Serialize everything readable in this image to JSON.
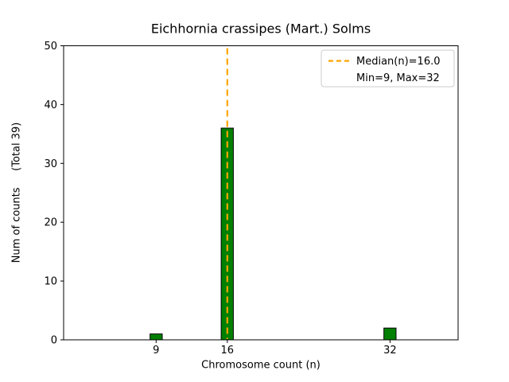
{
  "figure": {
    "title": "Eichhornia crassipes (Mart.) Solms",
    "xlabel": "Chromosome count (n)",
    "ylabel": "Num of counts     (Total 39)"
  },
  "chart_data": {
    "type": "bar",
    "title": "Eichhornia crassipes (Mart.) Solms",
    "xlabel": "Chromosome count (n)",
    "ylabel": "Num of counts",
    "ylabel_annotation": "(Total 39)",
    "x": [
      9,
      16,
      32
    ],
    "values": [
      1,
      36,
      2
    ],
    "total_counts": 39,
    "median": 16.0,
    "min": 9,
    "max": 32,
    "xticks": [
      9,
      16,
      32
    ],
    "yticks": [
      0,
      10,
      20,
      30,
      40,
      50
    ],
    "xlim": [
      -0.1,
      38.7
    ],
    "ylim": [
      0,
      50
    ],
    "bar_width": 1.2,
    "bar_color": "#008000",
    "bar_edge_color": "#000000",
    "median_color": "#FFA500",
    "median_style": "dashed",
    "grid": false,
    "legend_position": "upper right",
    "legend": [
      {
        "label": "Median(n)=16.0",
        "sample": "dashed-line",
        "color": "#FFA500"
      },
      {
        "label": "Min=9, Max=32",
        "sample": "none",
        "color": ""
      }
    ]
  }
}
